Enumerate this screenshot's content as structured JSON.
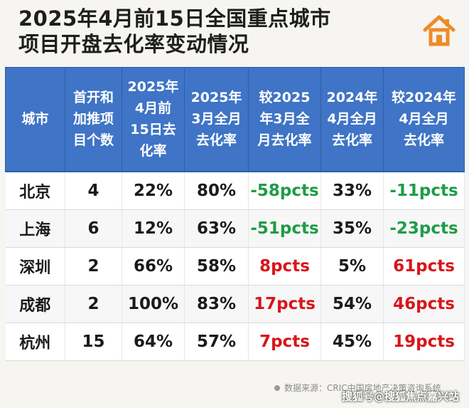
{
  "title": {
    "line1": "2025年4月前15日全国重点城市",
    "line2": "项目开盘去化率变动情况"
  },
  "logo_icon": "house-icon",
  "colors": {
    "header_bg": "#3f74c6",
    "negative": "#1e9c47",
    "positive": "#d7161b"
  },
  "table": {
    "headers": [
      [
        "城市"
      ],
      [
        "首开和",
        "加推项",
        "目个数"
      ],
      [
        "2025年",
        "4月前",
        "15日去",
        "化率"
      ],
      [
        "2025年",
        "3月全月",
        "去化率"
      ],
      [
        "较2025",
        "年3月全",
        "月去化率"
      ],
      [
        "2024年",
        "4月全月",
        "去化率"
      ],
      [
        "较2024年",
        "4月全月",
        "去化率"
      ]
    ],
    "rows": [
      [
        "北京",
        "4",
        "22%",
        "80%",
        "-58pcts",
        "33%",
        "-11pcts"
      ],
      [
        "上海",
        "6",
        "12%",
        "63%",
        "-51pcts",
        "35%",
        "-23pcts"
      ],
      [
        "深圳",
        "2",
        "66%",
        "58%",
        "8pcts",
        "5%",
        "61pcts"
      ],
      [
        "成都",
        "2",
        "100%",
        "83%",
        "17pcts",
        "54%",
        "46pcts"
      ],
      [
        "杭州",
        "15",
        "64%",
        "57%",
        "7pcts",
        "45%",
        "19pcts"
      ]
    ]
  },
  "footer": {
    "source": "数据来源：CRIC中国房地产决策咨询系统"
  },
  "watermark": "搜狐号@搜狐焦点嘉兴站"
}
